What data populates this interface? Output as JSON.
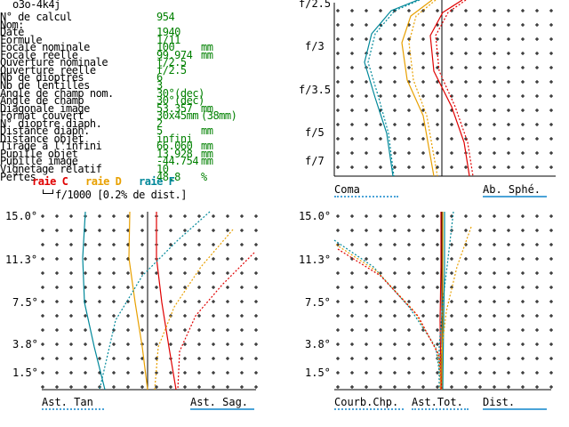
{
  "title": "o3o-4k4j",
  "info_rows": [
    {
      "label": "N° de calcul",
      "value": "954",
      "unit": ""
    },
    {
      "label": "Nom:",
      "value": "",
      "unit": ""
    },
    {
      "label": "Date",
      "value": "1940",
      "unit": ""
    },
    {
      "label": "Formule",
      "value": "1/11",
      "unit": ""
    },
    {
      "label": "Focale nominale",
      "value": "100",
      "unit": "mm"
    },
    {
      "label": "Focale réelle",
      "value": "99.974",
      "unit": "mm"
    },
    {
      "label": "Ouverture nominale",
      "value": "f/2.5",
      "unit": ""
    },
    {
      "label": "Ouverture réelle",
      "value": "f/2.5",
      "unit": ""
    },
    {
      "label": "Nb de dioptres",
      "value": "6",
      "unit": ""
    },
    {
      "label": "Nb de lentilles",
      "value": "3",
      "unit": ""
    },
    {
      "label": "Angle de champ nom.",
      "value": "30°(dec)",
      "unit": ""
    },
    {
      "label": "Angle de champ",
      "value": "30°(dec)",
      "unit": ""
    },
    {
      "label": "Diagonale image",
      "value": "53.357",
      "unit": "mm"
    },
    {
      "label": "Format couvert",
      "value": "30x45mm",
      "unit": "(38mm)"
    },
    {
      "label": "N° dioptre diaph.",
      "value": "2",
      "unit": ""
    },
    {
      "label": "Distance diaph.",
      "value": "5",
      "unit": "mm"
    },
    {
      "label": "Distance objet",
      "value": "infini",
      "unit": ""
    },
    {
      "label": "Tirage à l'infini",
      "value": "66.060",
      "unit": "mm"
    },
    {
      "label": "Pupille objet",
      "value": "13.928",
      "unit": "mm"
    },
    {
      "label": "Pupille image",
      "value": "-44.754",
      "unit": "mm"
    },
    {
      "label": "Vignetage relatif",
      "value": "10",
      "unit": ""
    },
    {
      "label": "Pertes",
      "value": "48.8",
      "unit": "%"
    }
  ],
  "legend": {
    "raie_c": "raie C",
    "raie_d": "raie D",
    "raie_f": "raie F",
    "distortion_note": "f/1000 [0.2% de dist.]",
    "colors": {
      "c": "#e00000",
      "d": "#e8a000",
      "f": "#00889a"
    }
  },
  "chart_data": [
    {
      "type": "line",
      "panel": "coma-spherical",
      "y_tick_labels": [
        "f/2.5",
        "f/3",
        "f/3.5",
        "f/5",
        "f/7"
      ],
      "bottom_labels": [
        "Coma",
        "Ab. Sphé."
      ]
    },
    {
      "type": "line",
      "panel": "astigmatism",
      "y_tick_labels": [
        "15.0°",
        "11.3°",
        "7.5°",
        "3.8°",
        "1.5°"
      ],
      "bottom_labels": [
        "Ast. Tan",
        "Ast. Sag."
      ]
    },
    {
      "type": "line",
      "panel": "curvature-distortion",
      "y_tick_labels": [
        "15.0°",
        "11.3°",
        "7.5°",
        "3.8°",
        "1.5°"
      ],
      "bottom_labels": [
        "Courb.Chp.",
        "Ast.Tot.",
        "Dist."
      ]
    }
  ]
}
